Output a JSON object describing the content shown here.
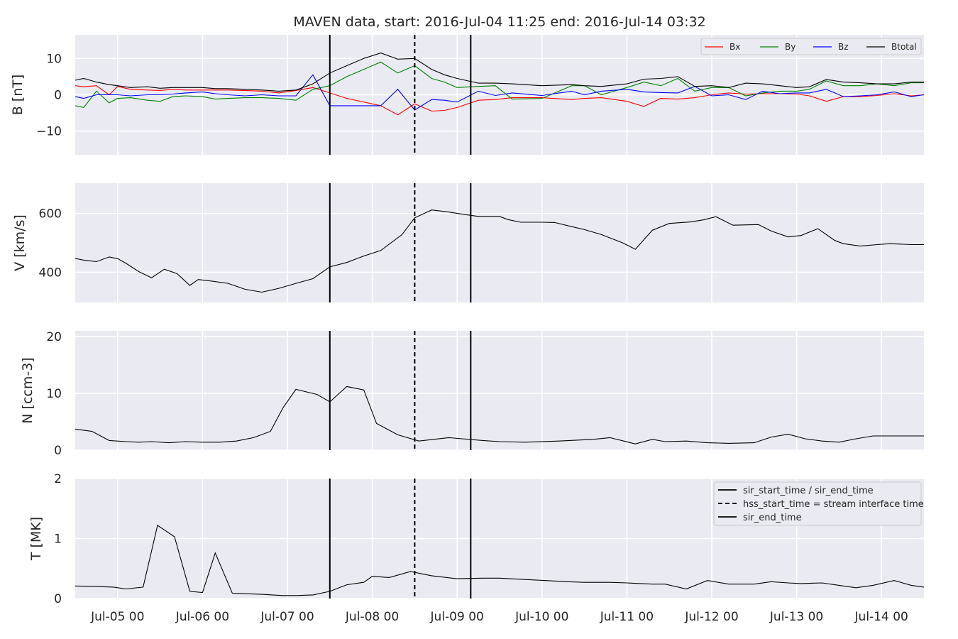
{
  "title": "MAVEN data, start: 2016-Jul-04 11:25  end: 2016-Jul-14 03:32",
  "colors": {
    "bx": "#ff0000",
    "by": "#008000",
    "bz": "#0000ff",
    "btotal": "#000000",
    "axes_bg": "#eaeaf2",
    "grid": "#ffffff"
  },
  "chart_data": [
    {
      "type": "line",
      "ylabel": "B [nT]",
      "ylim": [
        -16.5,
        16.5
      ],
      "yticks": [
        -10,
        0,
        10
      ],
      "ytick_labels": [
        "−10",
        "0",
        "10"
      ],
      "grid": true,
      "legend": {
        "placement": "top-right",
        "ncol": 4,
        "entries": [
          "Bx",
          "By",
          "Bz",
          "Btotal"
        ]
      },
      "x": [
        0.0,
        0.1,
        0.25,
        0.4,
        0.5,
        0.65,
        0.85,
        1.0,
        1.15,
        1.3,
        1.5,
        1.65,
        1.8,
        2.0,
        2.2,
        2.4,
        2.6,
        2.8,
        3.0,
        3.2,
        3.4,
        3.6,
        3.8,
        4.0,
        4.2,
        4.35,
        4.5,
        4.75,
        4.95,
        5.15,
        5.5,
        5.85,
        6.0,
        6.2,
        6.5,
        6.7,
        6.9,
        7.1,
        7.3,
        7.5,
        7.7,
        7.9,
        8.1,
        8.3,
        8.5,
        8.65,
        8.85,
        9.05,
        9.25,
        9.45,
        9.65,
        9.85,
        10.0
      ],
      "series": [
        {
          "name": "Bx",
          "color": "#ff0000",
          "values": [
            2.5,
            2.2,
            2.5,
            0.0,
            2.3,
            1.5,
            1.3,
            1.2,
            1.5,
            1.3,
            1.3,
            1.3,
            1.3,
            1.2,
            1.0,
            0.5,
            1.2,
            2.0,
            0.5,
            -1.0,
            -2.0,
            -3.0,
            -5.5,
            -2.5,
            -4.5,
            -4.3,
            -3.5,
            -1.5,
            -1.3,
            -0.8,
            -0.8,
            -1.3,
            -1.0,
            -0.8,
            -1.8,
            -3.2,
            -1.0,
            -1.2,
            -0.8,
            0.0,
            0.5,
            0.2,
            0.3,
            0.3,
            0.2,
            -0.3,
            -1.8,
            -0.5,
            -0.5,
            -0.2,
            0.3,
            -0.3,
            0.0
          ]
        },
        {
          "name": "By",
          "color": "#008000",
          "values": [
            -3.0,
            -3.5,
            1.0,
            -2.2,
            -1.0,
            -0.8,
            -1.5,
            -1.8,
            -0.5,
            -0.3,
            -0.5,
            -1.2,
            -1.0,
            -0.8,
            -0.8,
            -1.0,
            -1.5,
            1.5,
            2.5,
            5.0,
            7.0,
            9.0,
            6.0,
            8.0,
            4.5,
            3.5,
            2.0,
            2.3,
            2.5,
            -1.2,
            -1.0,
            2.5,
            2.5,
            0.0,
            2.0,
            3.5,
            2.5,
            4.5,
            1.0,
            2.0,
            2.0,
            -0.3,
            0.5,
            1.0,
            1.0,
            1.5,
            3.8,
            2.5,
            2.5,
            3.0,
            2.5,
            3.3,
            3.3
          ]
        },
        {
          "name": "Bz",
          "color": "#0000ff",
          "values": [
            -0.5,
            -1.0,
            0.0,
            0.0,
            0.0,
            -0.3,
            0.0,
            0.0,
            0.2,
            0.5,
            0.8,
            0.3,
            0.0,
            -0.3,
            0.0,
            -0.3,
            -0.3,
            5.5,
            -3.0,
            -3.0,
            -3.0,
            -3.0,
            1.5,
            -4.2,
            -1.3,
            -1.5,
            -2.0,
            1.0,
            -0.2,
            0.5,
            -0.2,
            1.0,
            0.0,
            1.0,
            1.5,
            0.8,
            0.6,
            0.5,
            2.3,
            -0.3,
            0.0,
            -1.3,
            1.0,
            0.3,
            0.5,
            0.5,
            1.5,
            -0.5,
            -0.3,
            0.0,
            0.8,
            -0.5,
            0.0
          ]
        },
        {
          "name": "Btotal",
          "color": "#000000",
          "values": [
            4.0,
            4.5,
            3.5,
            2.8,
            2.5,
            2.0,
            2.2,
            1.8,
            2.0,
            2.0,
            2.0,
            1.7,
            1.7,
            1.5,
            1.3,
            1.0,
            1.3,
            3.0,
            6.0,
            8.0,
            10.0,
            11.5,
            9.8,
            10.0,
            7.0,
            5.5,
            4.5,
            3.2,
            3.2,
            3.0,
            2.5,
            2.8,
            2.5,
            2.3,
            3.0,
            4.3,
            4.5,
            5.0,
            2.3,
            2.5,
            2.0,
            3.2,
            3.0,
            2.5,
            2.0,
            2.2,
            4.2,
            3.5,
            3.3,
            3.0,
            3.0,
            3.5,
            3.5
          ]
        }
      ]
    },
    {
      "type": "line",
      "ylabel": "V [km/s]",
      "ylim": [
        297,
        703
      ],
      "yticks": [
        400,
        600
      ],
      "ytick_labels": [
        "400",
        "600"
      ],
      "grid": true,
      "x": [
        0.0,
        0.1,
        0.25,
        0.4,
        0.5,
        0.6,
        0.75,
        0.9,
        1.05,
        1.2,
        1.35,
        1.45,
        1.6,
        1.8,
        2.0,
        2.2,
        2.4,
        2.6,
        2.8,
        3.0,
        3.2,
        3.4,
        3.6,
        3.85,
        4.0,
        4.2,
        4.4,
        4.6,
        4.75,
        5.0,
        5.1,
        5.25,
        5.5,
        5.65,
        5.85,
        6.0,
        6.2,
        6.45,
        6.6,
        6.8,
        7.0,
        7.25,
        7.4,
        7.55,
        7.75,
        8.05,
        8.2,
        8.4,
        8.55,
        8.75,
        8.95,
        9.05,
        9.25,
        9.45,
        9.6,
        9.85,
        10.0
      ],
      "series": [
        {
          "name": "V",
          "color": "#000000",
          "values": [
            447,
            441,
            436,
            452,
            446,
            430,
            402,
            381,
            410,
            395,
            355,
            375,
            370,
            362,
            342,
            332,
            345,
            362,
            378,
            418,
            433,
            455,
            474,
            528,
            585,
            612,
            605,
            596,
            590,
            590,
            579,
            570,
            570,
            569,
            555,
            545,
            528,
            500,
            478,
            543,
            566,
            571,
            578,
            589,
            560,
            562,
            540,
            520,
            525,
            548,
            508,
            497,
            489,
            494,
            497,
            494,
            494
          ]
        }
      ]
    },
    {
      "type": "line",
      "ylabel": "N [ccm-3]",
      "ylim": [
        0,
        21
      ],
      "yticks": [
        0,
        10,
        20
      ],
      "ytick_labels": [
        "0",
        "10",
        "20"
      ],
      "grid": true,
      "x": [
        0.0,
        0.2,
        0.4,
        0.6,
        0.75,
        0.9,
        1.1,
        1.3,
        1.5,
        1.7,
        1.9,
        2.1,
        2.3,
        2.45,
        2.6,
        2.85,
        3.0,
        3.2,
        3.4,
        3.55,
        3.8,
        4.05,
        4.4,
        4.8,
        5.0,
        5.3,
        5.7,
        6.1,
        6.3,
        6.6,
        6.8,
        6.95,
        7.2,
        7.45,
        7.7,
        8.0,
        8.2,
        8.4,
        8.6,
        8.8,
        9.0,
        9.2,
        9.4,
        9.6,
        9.8,
        10.0
      ],
      "series": [
        {
          "name": "N",
          "color": "#000000",
          "values": [
            3.7,
            3.3,
            1.7,
            1.5,
            1.4,
            1.5,
            1.3,
            1.5,
            1.4,
            1.4,
            1.6,
            2.2,
            3.3,
            7.5,
            10.7,
            9.8,
            8.5,
            11.2,
            10.6,
            4.7,
            2.7,
            1.6,
            2.2,
            1.7,
            1.5,
            1.4,
            1.6,
            1.9,
            2.2,
            1.1,
            1.9,
            1.5,
            1.6,
            1.3,
            1.2,
            1.3,
            2.3,
            2.8,
            2.0,
            1.6,
            1.4,
            2.0,
            2.5,
            2.5,
            2.5,
            2.5
          ]
        }
      ]
    },
    {
      "type": "line",
      "ylabel": "T [MK]",
      "ylim": [
        0,
        2
      ],
      "yticks": [
        0,
        1,
        2
      ],
      "ytick_labels": [
        "0",
        "1",
        "2"
      ],
      "grid": true,
      "legend": {
        "placement": "top-right",
        "entries": [
          "sir_start_time / sir_end_time",
          "hss_start_time = stream interface time",
          "sir_end_time"
        ]
      },
      "x": [
        0.0,
        0.25,
        0.45,
        0.6,
        0.8,
        0.97,
        1.17,
        1.35,
        1.5,
        1.65,
        1.85,
        2.0,
        2.2,
        2.45,
        2.6,
        2.8,
        3.0,
        3.2,
        3.4,
        3.5,
        3.7,
        3.95,
        4.2,
        4.5,
        4.8,
        5.0,
        5.4,
        5.8,
        6.0,
        6.3,
        6.5,
        6.8,
        6.95,
        7.2,
        7.45,
        7.7,
        8.0,
        8.2,
        8.4,
        8.55,
        8.8,
        9.0,
        9.2,
        9.4,
        9.65,
        9.85,
        10.0
      ],
      "series": [
        {
          "name": "T",
          "color": "#000000",
          "values": [
            0.21,
            0.2,
            0.19,
            0.16,
            0.19,
            1.22,
            1.03,
            0.12,
            0.1,
            0.76,
            0.09,
            0.08,
            0.07,
            0.05,
            0.05,
            0.06,
            0.12,
            0.23,
            0.27,
            0.37,
            0.35,
            0.45,
            0.38,
            0.33,
            0.34,
            0.34,
            0.31,
            0.28,
            0.27,
            0.27,
            0.26,
            0.24,
            0.24,
            0.16,
            0.3,
            0.24,
            0.24,
            0.28,
            0.26,
            0.25,
            0.26,
            0.22,
            0.18,
            0.22,
            0.3,
            0.22,
            0.19
          ]
        }
      ]
    }
  ],
  "x_axis": {
    "unit": "days after 2016-Jul-04 11:25",
    "range": [
      0,
      10
    ],
    "ticks": [
      0.5,
      1.5,
      2.5,
      3.5,
      4.5,
      5.5,
      6.5,
      7.5,
      8.5,
      9.5
    ],
    "tick_labels": [
      "Jul-05 00",
      "Jul-06 00",
      "Jul-07 00",
      "Jul-08 00",
      "Jul-09 00",
      "Jul-10 00",
      "Jul-11 00",
      "Jul-12 00",
      "Jul-13 00",
      "Jul-14 00"
    ]
  },
  "events": {
    "sir_start": 3.0,
    "hss_start": 4.0,
    "sir_end": 4.66
  }
}
